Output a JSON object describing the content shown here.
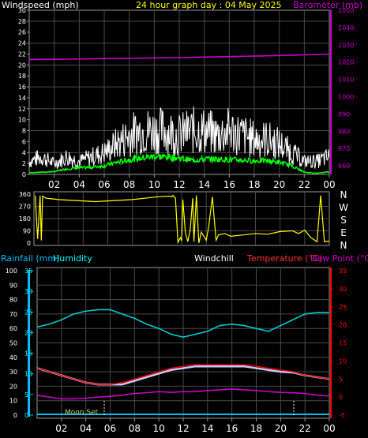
{
  "colors": {
    "background": "#000000",
    "frame": "#9a9a9a",
    "grid": "#4a4a4a",
    "axis_text": "#ffffff",
    "date_title": "#ffff00",
    "barometer": "#cc00cc",
    "windspeed_gust": "#ffffff",
    "windspeed_avg": "#00ff00",
    "wind_direction": "#ffff00",
    "rainfall": "#00bfff",
    "humidity": "#00ffff",
    "windchill": "#ffffff",
    "temperature": "#ff0000",
    "dewpoint": "#cc00cc"
  },
  "chart_data": [
    {
      "type": "line",
      "title": "24 hour graph day : 04 May 2025",
      "left_axis_label": "Windspeed (mph)",
      "right_axis_label": "Barometer (mb)",
      "x_ticks": [
        "02",
        "04",
        "06",
        "08",
        "10",
        "12",
        "14",
        "16",
        "18",
        "20",
        "22",
        "00"
      ],
      "x_range_hours": [
        0,
        24
      ],
      "left_ylim": [
        0,
        30
      ],
      "left_ticks": [
        "0",
        "2",
        "4",
        "6",
        "8",
        "10",
        "12",
        "14",
        "16",
        "18",
        "20",
        "22",
        "24",
        "26",
        "28",
        "30"
      ],
      "right_ylim": [
        955,
        1050
      ],
      "right_ticks": [
        "960",
        "970",
        "980",
        "990",
        "1000",
        "1010",
        "1020",
        "1030",
        "1040",
        "1050"
      ],
      "grid": true,
      "series": [
        {
          "name": "Barometer (mb)",
          "axis": "right",
          "x": [
            0,
            2,
            4,
            6,
            8,
            10,
            12,
            14,
            16,
            18,
            20,
            22,
            24
          ],
          "y": [
            1021.5,
            1021.6,
            1021.8,
            1022.0,
            1022.2,
            1022.4,
            1022.6,
            1022.9,
            1023.2,
            1023.5,
            1023.8,
            1024.2,
            1024.6
          ]
        },
        {
          "name": "gust",
          "axis": "left",
          "x": [
            0,
            1,
            2,
            3,
            4,
            5,
            6,
            7,
            8,
            9,
            10,
            11,
            12,
            13,
            14,
            15,
            16,
            17,
            18,
            19,
            20,
            21,
            22,
            23,
            24
          ],
          "y": [
            3,
            4,
            2.5,
            4,
            3,
            4,
            5,
            7,
            9,
            10,
            10,
            10,
            9,
            10,
            10,
            9,
            10,
            9,
            8,
            8,
            7,
            5,
            3,
            3,
            4
          ]
        },
        {
          "name": "average",
          "axis": "left",
          "x": [
            0,
            1,
            2,
            3,
            4,
            5,
            6,
            7,
            8,
            9,
            10,
            11,
            12,
            13,
            14,
            15,
            16,
            17,
            18,
            19,
            20,
            21,
            22,
            23,
            24
          ],
          "y": [
            0.3,
            0.4,
            0.5,
            1.0,
            1.2,
            1.3,
            1.6,
            2.2,
            2.7,
            3.0,
            3.3,
            3.2,
            3.0,
            2.6,
            2.8,
            2.8,
            2.7,
            2.6,
            2.5,
            2.5,
            2.2,
            1.6,
            0.4,
            0.2,
            0.5
          ]
        }
      ]
    },
    {
      "type": "line",
      "right_axis_label": [
        "N",
        "W",
        "S",
        "E",
        "N"
      ],
      "left_ylim": [
        0,
        360
      ],
      "left_ticks": [
        "0",
        "90",
        "180",
        "270",
        "360"
      ],
      "series": [
        {
          "name": "wind direction",
          "x": [
            0.1,
            0.3,
            0.5,
            0.6,
            0.7,
            1.0,
            1.5,
            2.0,
            3.0,
            4.0,
            5.0,
            6.0,
            7.0,
            8.0,
            9.0,
            10.0,
            11.0,
            11.2,
            11.3,
            11.5,
            11.7,
            11.9,
            12.0,
            12.1,
            12.3,
            12.5,
            12.7,
            12.9,
            13.0,
            13.2,
            13.4,
            13.6,
            14.0,
            14.2,
            14.5,
            14.8,
            15.0,
            15.5,
            16.0,
            17.0,
            18.0,
            19.0,
            20.0,
            21.0,
            21.5,
            22.0,
            22.5,
            23.0,
            23.3,
            23.6,
            24.0
          ],
          "y": [
            350,
            30,
            350,
            20,
            345,
            330,
            325,
            320,
            315,
            310,
            305,
            310,
            315,
            320,
            330,
            340,
            345,
            340,
            350,
            330,
            5,
            40,
            15,
            320,
            80,
            10,
            100,
            330,
            10,
            350,
            0,
            80,
            20,
            120,
            340,
            20,
            60,
            70,
            50,
            60,
            70,
            65,
            85,
            90,
            70,
            95,
            40,
            10,
            350,
            10,
            15
          ]
        }
      ]
    },
    {
      "type": "line",
      "left_axis_label": "Rainfall (mm)",
      "left_axis_label_2": "Humidity",
      "centre_label": "Windchill",
      "right_axis_label": "Temperature (°C)",
      "right_axis_label_2": "Dew Point (°C)",
      "x_ticks": [
        "02",
        "04",
        "06",
        "08",
        "10",
        "12",
        "14",
        "16",
        "18",
        "20",
        "22",
        "00"
      ],
      "x_range_hours": [
        0,
        24
      ],
      "humidity_ylim": [
        0,
        100
      ],
      "humidity_ticks": [
        "0",
        "10",
        "20",
        "30",
        "40",
        "50",
        "60",
        "70",
        "80",
        "90",
        "100"
      ],
      "rain_ylim": [
        0,
        35
      ],
      "rain_ticks": [
        "0",
        "5",
        "10",
        "15",
        "20",
        "25",
        "30",
        "35"
      ],
      "temp_ylim": [
        -5,
        35
      ],
      "temp_ticks": [
        "-5",
        "0",
        "5",
        "10",
        "15",
        "20",
        "25",
        "30",
        "35"
      ],
      "annotation": "Moon Set",
      "grid": true,
      "series": [
        {
          "name": "Humidity",
          "axis": "humidity",
          "x": [
            0,
            1,
            2,
            3,
            4,
            5,
            6,
            7,
            8,
            9,
            10,
            11,
            12,
            13,
            14,
            15,
            16,
            17,
            18,
            19,
            20,
            21,
            22,
            23,
            24
          ],
          "y": [
            61,
            63,
            66,
            70,
            72,
            73,
            73,
            70,
            67,
            63,
            60,
            56,
            54,
            56,
            58,
            62,
            63,
            62,
            60,
            58,
            62,
            66,
            70,
            71,
            71
          ]
        },
        {
          "name": "Temperature",
          "axis": "temp",
          "x": [
            0,
            1,
            2,
            3,
            4,
            5,
            6,
            7,
            8,
            9,
            10,
            11,
            12,
            13,
            14,
            15,
            16,
            17,
            18,
            19,
            20,
            21,
            22,
            23,
            24
          ],
          "y": [
            8,
            7,
            6,
            5,
            4,
            3.5,
            3.5,
            4,
            5,
            6,
            7,
            8,
            8.5,
            9,
            9,
            9,
            9,
            9,
            8.5,
            8,
            7.5,
            7,
            6,
            5.5,
            5
          ]
        },
        {
          "name": "Windchill",
          "axis": "temp",
          "x": [
            0,
            1,
            2,
            3,
            4,
            5,
            6,
            7,
            8,
            9,
            10,
            11,
            12,
            13,
            14,
            15,
            16,
            17,
            18,
            19,
            20,
            21,
            22,
            23,
            24
          ],
          "y": [
            8,
            7,
            6,
            5,
            4,
            3.5,
            3.5,
            3.5,
            4.5,
            5.5,
            6.5,
            7.5,
            8,
            8.5,
            8.5,
            8.5,
            8.5,
            8.5,
            8,
            7.5,
            7,
            6.8,
            6,
            5.5,
            5
          ]
        },
        {
          "name": "Dew Point",
          "axis": "temp",
          "x": [
            0,
            1,
            2,
            3,
            4,
            5,
            6,
            7,
            8,
            9,
            10,
            11,
            12,
            13,
            14,
            15,
            16,
            17,
            18,
            19,
            20,
            21,
            22,
            23,
            24
          ],
          "y": [
            0.5,
            0,
            -0.5,
            -0.5,
            -0.3,
            0,
            0.2,
            0.5,
            1,
            1.2,
            1.5,
            1.3,
            1.5,
            1.5,
            1.8,
            2,
            2.2,
            2.0,
            1.8,
            1.5,
            1.3,
            1.2,
            1.0,
            0.5,
            0.3
          ]
        },
        {
          "name": "Rainfall",
          "axis": "rain",
          "x": [
            0,
            24
          ],
          "y": [
            0,
            0
          ]
        }
      ]
    }
  ]
}
